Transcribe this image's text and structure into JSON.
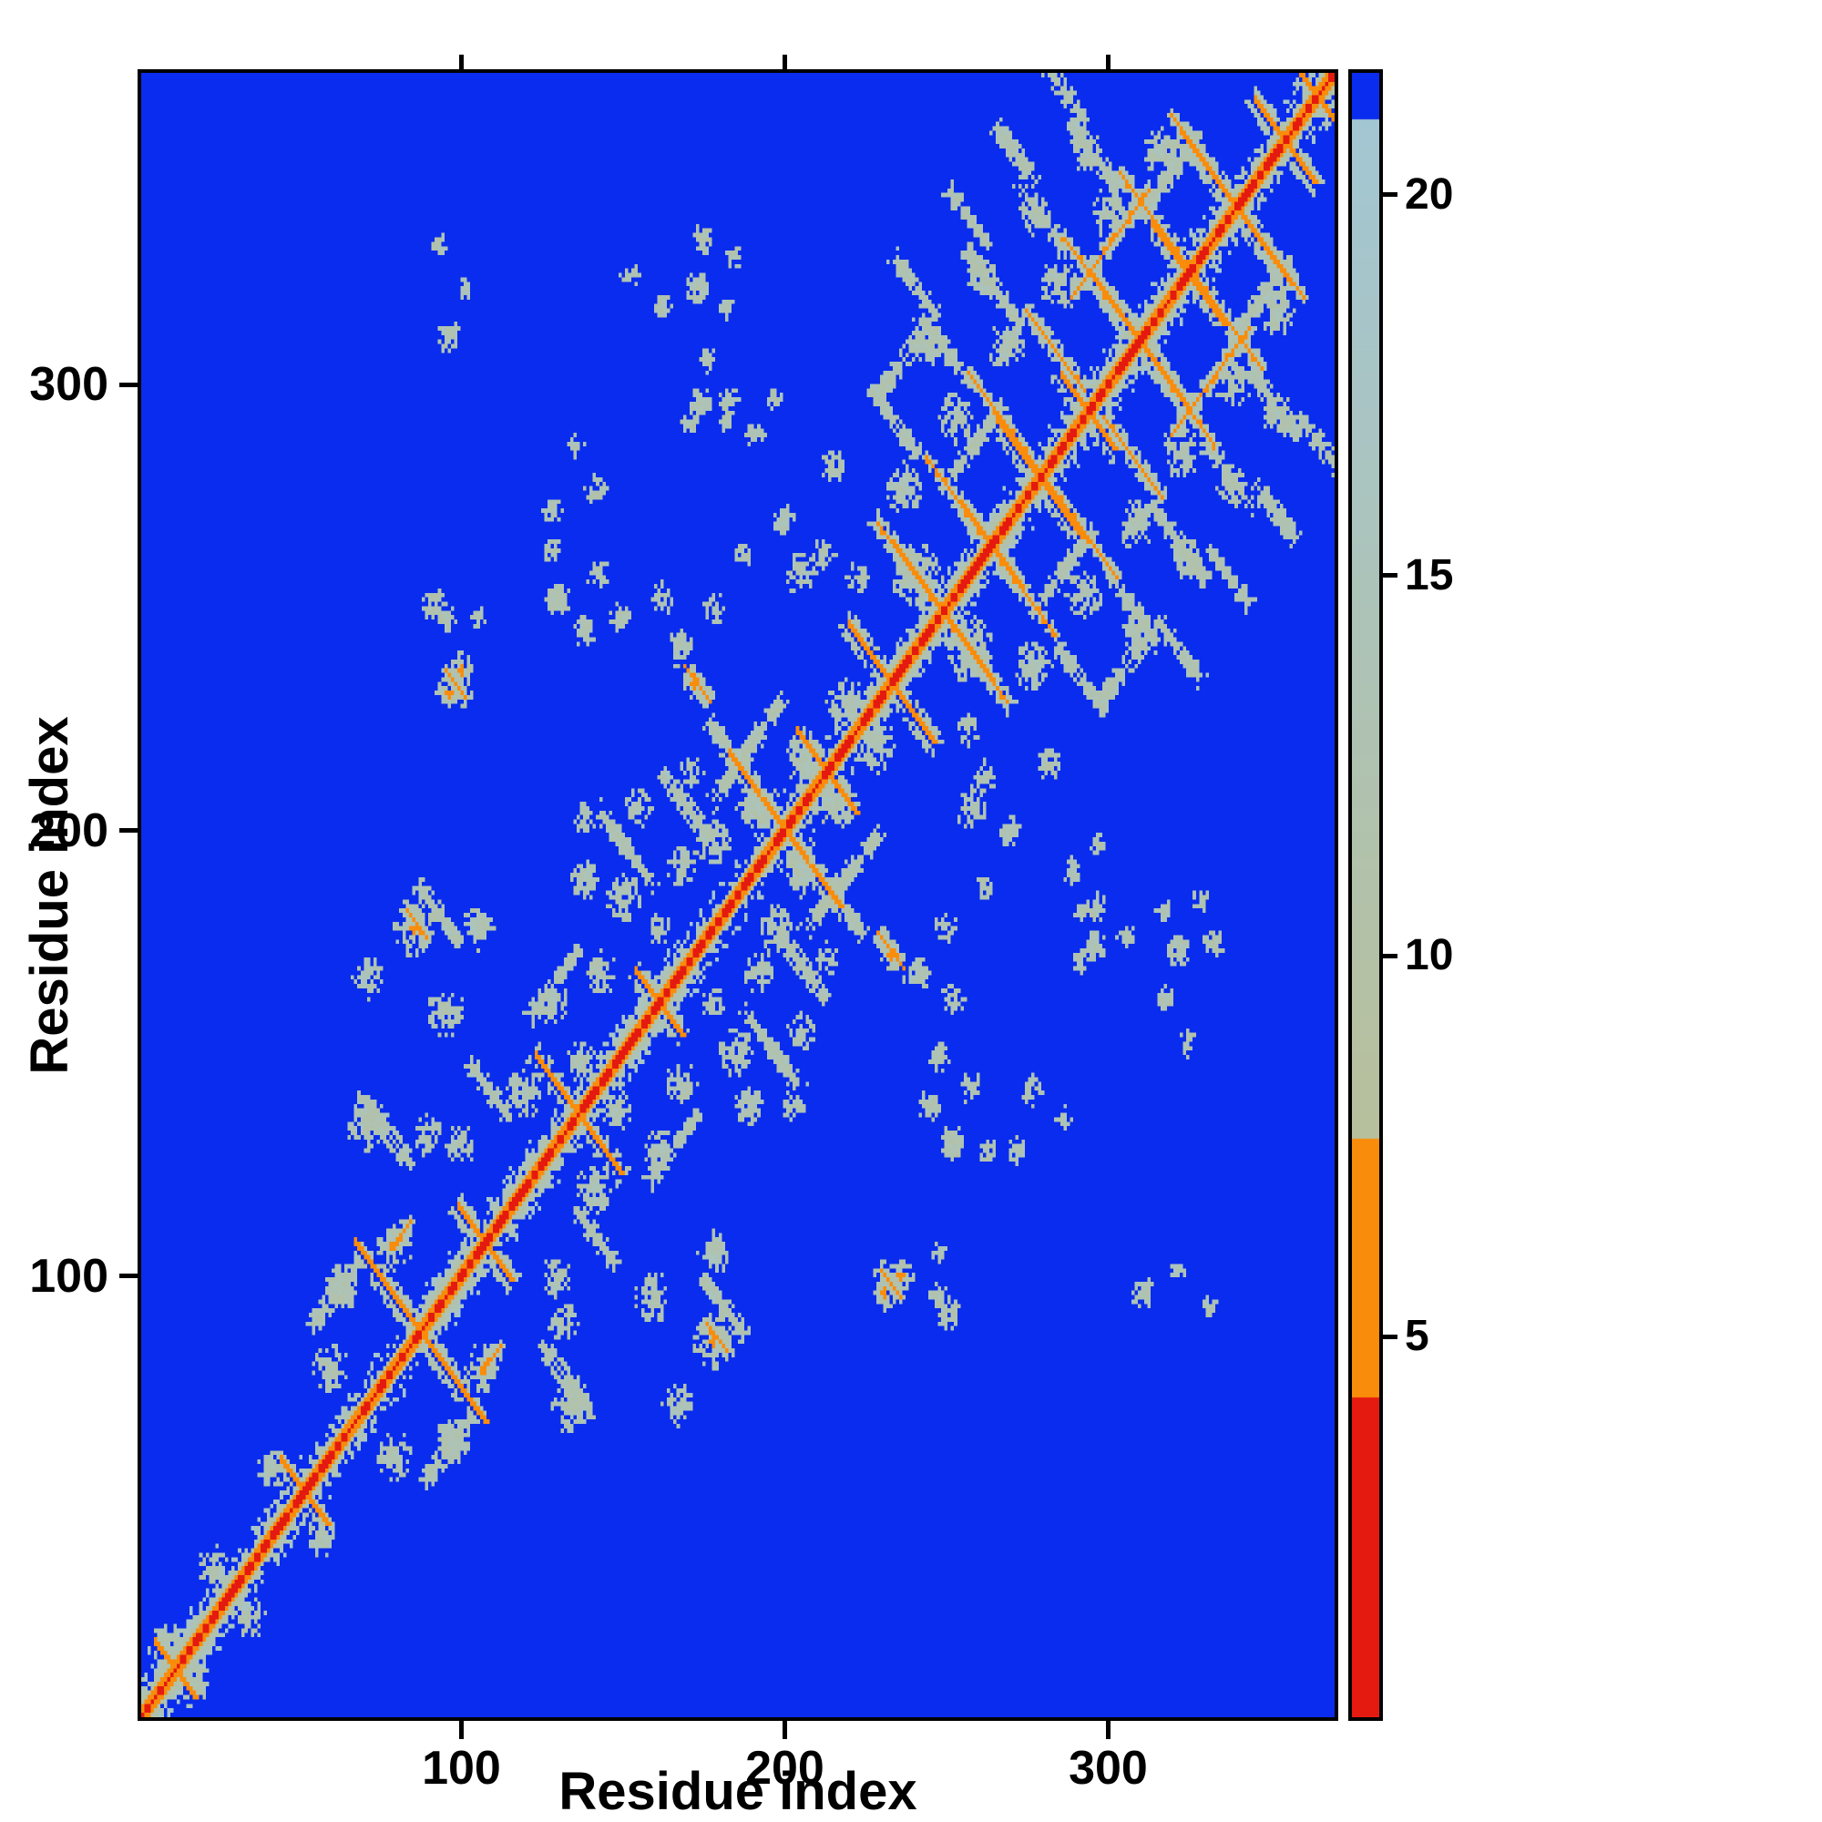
{
  "chart_data": {
    "type": "heatmap",
    "title": "",
    "xlabel": "Residue index",
    "ylabel": "Residue index",
    "x_range": [
      1,
      370
    ],
    "y_range": [
      1,
      370
    ],
    "x_ticks": [
      100,
      200,
      300
    ],
    "y_ticks": [
      100,
      200,
      300
    ],
    "colorbar": {
      "min": 0,
      "max": 21.6,
      "ticks": [
        5,
        10,
        15,
        20
      ]
    },
    "n_residues": 370,
    "background_value": 30,
    "description": "Symmetric residue-residue distance map: red diagonal = shortest distances, orange = close contacts, pale green-grey = mid-range distances, blue = beyond cutoff",
    "colormap": {
      "red": "#e41a10",
      "red_max": 4.2,
      "orange": "#f98c0a",
      "orange_max": 7.6,
      "pale_lo": "#b7c09c",
      "pale_hi": "#a3c6d3",
      "pale_max": 21.0,
      "blue": "#0a2cee"
    },
    "hairpins": [
      [
        10,
        6
      ],
      [
        50,
        7
      ],
      [
        86,
        20
      ],
      [
        106,
        8
      ],
      [
        135,
        13
      ],
      [
        160,
        7
      ],
      [
        199,
        17
      ],
      [
        212,
        9
      ],
      [
        232,
        13
      ],
      [
        248,
        15
      ],
      [
        263,
        9
      ],
      [
        278,
        13
      ],
      [
        293,
        8
      ],
      [
        309,
        15
      ],
      [
        324,
        11
      ],
      [
        339,
        16
      ],
      [
        354,
        9
      ],
      [
        364,
        5
      ]
    ],
    "contacts": [
      [
        238,
        258,
        10,
        "anti",
        "orange"
      ],
      [
        252,
        274,
        9,
        "anti",
        "orange"
      ],
      [
        267,
        291,
        11,
        "anti",
        "orange"
      ],
      [
        283,
        307,
        9,
        "anti",
        "orange"
      ],
      [
        297,
        321,
        11,
        "anti",
        "orange"
      ],
      [
        313,
        337,
        10,
        "anti",
        "orange"
      ],
      [
        328,
        351,
        9,
        "anti",
        "orange"
      ],
      [
        233,
        291,
        7,
        "anti",
        "pale"
      ],
      [
        249,
        307,
        7,
        "anti",
        "pale"
      ],
      [
        264,
        321,
        8,
        "anti",
        "pale"
      ],
      [
        279,
        337,
        7,
        "anti",
        "pale"
      ],
      [
        295,
        351,
        7,
        "anti",
        "pale"
      ],
      [
        240,
        321,
        6,
        "anti",
        "pale"
      ],
      [
        256,
        337,
        6,
        "anti",
        "pale"
      ],
      [
        271,
        351,
        6,
        "anti",
        "pale"
      ],
      [
        287,
        364,
        5,
        "anti",
        "pale"
      ],
      [
        300,
        331,
        12,
        "para",
        "orange"
      ],
      [
        257,
        285,
        9,
        "para",
        "pale"
      ],
      [
        236,
        305,
        7,
        "para",
        "pale"
      ],
      [
        320,
        348,
        8,
        "para",
        "pale"
      ],
      [
        92,
        180,
        6,
        "anti",
        "pale"
      ],
      [
        75,
        132,
        8,
        "anti",
        "pale"
      ],
      [
        128,
        165,
        7,
        "para",
        "pale"
      ],
      [
        150,
        195,
        8,
        "anti",
        "pale"
      ],
      [
        60,
        95,
        7,
        "para",
        "pale"
      ],
      [
        108,
        140,
        6,
        "anti",
        "pale"
      ],
      [
        168,
        205,
        7,
        "anti",
        "pale"
      ],
      [
        183,
        212,
        6,
        "para",
        "pale"
      ],
      [
        186,
        213,
        10,
        "anti",
        "pale"
      ],
      [
        190,
        220,
        8,
        "para",
        "pale"
      ],
      [
        97,
        232,
        3,
        "anti",
        "orange"
      ],
      [
        85,
        178,
        3,
        "anti",
        "orange"
      ],
      [
        80,
        108,
        3,
        "para",
        "orange"
      ],
      [
        172,
        232,
        4,
        "anti",
        "orange"
      ]
    ],
    "blobs": [
      [
        8,
        16,
        6,
        0
      ],
      [
        22,
        34,
        5,
        0
      ],
      [
        40,
        55,
        5,
        0
      ],
      [
        58,
        78,
        6,
        0
      ],
      [
        62,
        96,
        6,
        0
      ],
      [
        78,
        106,
        6,
        1
      ],
      [
        70,
        133,
        7,
        0
      ],
      [
        88,
        130,
        5,
        0
      ],
      [
        98,
        128,
        5,
        0
      ],
      [
        94,
        158,
        6,
        0
      ],
      [
        70,
        166,
        5,
        0
      ],
      [
        84,
        177,
        7,
        1
      ],
      [
        104,
        177,
        5,
        0
      ],
      [
        118,
        140,
        6,
        0
      ],
      [
        127,
        160,
        5,
        0
      ],
      [
        136,
        147,
        5,
        0
      ],
      [
        142,
        167,
        5,
        0
      ],
      [
        149,
        184,
        6,
        0
      ],
      [
        137,
        188,
        5,
        0
      ],
      [
        160,
        177,
        4,
        0
      ],
      [
        167,
        191,
        5,
        0
      ],
      [
        177,
        197,
        6,
        0
      ],
      [
        189,
        204,
        5,
        0
      ],
      [
        154,
        204,
        5,
        0
      ],
      [
        170,
        212,
        4,
        0
      ],
      [
        95,
        230,
        4,
        1
      ],
      [
        90,
        250,
        4,
        0
      ],
      [
        104,
        247,
        3,
        0
      ],
      [
        128,
        251,
        4,
        0
      ],
      [
        127,
        262,
        3,
        0
      ],
      [
        137,
        202,
        4,
        0
      ],
      [
        148,
        247,
        4,
        0
      ],
      [
        161,
        251,
        4,
        0
      ],
      [
        167,
        241,
        4,
        0
      ],
      [
        177,
        249,
        4,
        0
      ],
      [
        186,
        261,
        3,
        0
      ],
      [
        151,
        324,
        3,
        0
      ],
      [
        161,
        317,
        3,
        0
      ],
      [
        172,
        321,
        4,
        0
      ],
      [
        181,
        317,
        3,
        0
      ],
      [
        173,
        295,
        4,
        0
      ],
      [
        181,
        291,
        3,
        0
      ],
      [
        174,
        332,
        4,
        0
      ],
      [
        183,
        328,
        3,
        0
      ],
      [
        204,
        257,
        5,
        0
      ],
      [
        199,
        269,
        4,
        0
      ],
      [
        214,
        281,
        4,
        0
      ],
      [
        211,
        261,
        4,
        0
      ],
      [
        222,
        256,
        4,
        0
      ],
      [
        232,
        171,
        4,
        1
      ],
      [
        244,
        137,
        4,
        0
      ],
      [
        257,
        141,
        4,
        0
      ],
      [
        251,
        129,
        4,
        0
      ],
      [
        276,
        141,
        4,
        0
      ],
      [
        286,
        134,
        3,
        0
      ],
      [
        271,
        127,
        3,
        0
      ],
      [
        235,
        99,
        5,
        1
      ],
      [
        247,
        94,
        4,
        0
      ],
      [
        310,
        95,
        4,
        0
      ],
      [
        321,
        100,
        3,
        0
      ],
      [
        331,
        92,
        3,
        0
      ],
      [
        297,
        182,
        4,
        0
      ],
      [
        305,
        175,
        3,
        0
      ],
      [
        291,
        170,
        3,
        0
      ],
      [
        190,
        288,
        3,
        0
      ],
      [
        196,
        296,
        3,
        0
      ],
      [
        205,
        215,
        7,
        0
      ],
      [
        218,
        228,
        6,
        0
      ],
      [
        192,
        204,
        6,
        0
      ],
      [
        240,
        256,
        8,
        0
      ],
      [
        236,
        276,
        6,
        0
      ],
      [
        252,
        292,
        6,
        0
      ],
      [
        268,
        308,
        6,
        0
      ],
      [
        284,
        322,
        6,
        0
      ],
      [
        300,
        338,
        6,
        0
      ],
      [
        316,
        352,
        6,
        0
      ],
      [
        244,
        308,
        5,
        0
      ],
      [
        260,
        324,
        5,
        0
      ],
      [
        276,
        338,
        5,
        0
      ],
      [
        292,
        352,
        5,
        0
      ]
    ]
  }
}
